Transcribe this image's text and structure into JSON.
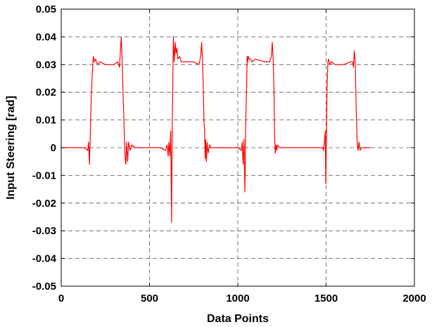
{
  "chart_data": {
    "type": "line",
    "title": "",
    "xlabel": "Data Points",
    "ylabel": "Input Steering [rad]",
    "xlim": [
      0,
      2000
    ],
    "ylim": [
      -0.05,
      0.05
    ],
    "x_ticks": [
      0,
      500,
      1000,
      1500,
      2000
    ],
    "x_tick_labels": [
      "0",
      "500",
      "1000",
      "1500",
      "2000"
    ],
    "y_ticks": [
      -0.05,
      -0.04,
      -0.03,
      -0.02,
      -0.01,
      0,
      0.01,
      0.02,
      0.03,
      0.04,
      0.05
    ],
    "y_tick_labels": [
      "-0.05",
      "-0.04",
      "-0.03",
      "-0.02",
      "-0.01",
      "0",
      "0.01",
      "0.02",
      "0.03",
      "0.04",
      "0.05"
    ],
    "grid": true,
    "grid_style": "dashed",
    "legend": "none",
    "series_color": "#ff0000",
    "series": [
      {
        "x": [
          0,
          130,
          150,
          155,
          160,
          165,
          170,
          175,
          182,
          188,
          195,
          205,
          220,
          250,
          300,
          320,
          330,
          335,
          340,
          345,
          350,
          355,
          358,
          362,
          366,
          370,
          376,
          382,
          390,
          400,
          420,
          500,
          560,
          590,
          600,
          605,
          610,
          615,
          620,
          625,
          628,
          632,
          635,
          640,
          645,
          650,
          655,
          660,
          670,
          680,
          700,
          750,
          780,
          790,
          795,
          800,
          805,
          808,
          812,
          815,
          818,
          822,
          826,
          832,
          840,
          850,
          870,
          900,
          1000,
          1020,
          1025,
          1030,
          1035,
          1040,
          1045,
          1050,
          1053,
          1056,
          1060,
          1065,
          1070,
          1080,
          1100,
          1150,
          1180,
          1190,
          1195,
          1200,
          1205,
          1208,
          1212,
          1216,
          1220,
          1225,
          1235,
          1260,
          1300,
          1460,
          1480,
          1485,
          1490,
          1495,
          1498,
          1502,
          1505,
          1510,
          1515,
          1520,
          1530,
          1550,
          1600,
          1640,
          1650,
          1655,
          1660,
          1665,
          1668,
          1672,
          1676,
          1680,
          1686,
          1692,
          1700,
          1720,
          1750
        ],
        "y": [
          0,
          0,
          -0.001,
          0.002,
          -0.006,
          0.005,
          0.018,
          0.026,
          0.033,
          0.031,
          0.032,
          0.03,
          0.031,
          0.03,
          0.03,
          0.031,
          0.029,
          0.035,
          0.04,
          0.032,
          0.02,
          0.01,
          0.003,
          -0.004,
          -0.006,
          0.002,
          -0.005,
          0.002,
          -0.001,
          0.001,
          0,
          0,
          0,
          -0.001,
          0.001,
          -0.003,
          0.002,
          -0.003,
          0.006,
          -0.027,
          0.004,
          0.024,
          0.04,
          0.031,
          0.038,
          0.034,
          0.036,
          0.032,
          0.033,
          0.031,
          0.031,
          0.031,
          0.03,
          0.033,
          0.038,
          0.032,
          0.02,
          0.01,
          0.006,
          -0.004,
          0.003,
          -0.005,
          0.002,
          -0.002,
          0.001,
          0,
          0,
          0,
          0,
          -0.001,
          0.002,
          -0.006,
          0.003,
          -0.016,
          0.01,
          0.022,
          0.033,
          0.031,
          0.033,
          0.032,
          0.032,
          0.031,
          0.032,
          0.031,
          0.031,
          0.033,
          0.038,
          0.032,
          0.02,
          0.005,
          -0.002,
          0.001,
          -0.001,
          0.001,
          0,
          0,
          0,
          0,
          0,
          -0.001,
          0.002,
          0.006,
          -0.013,
          0.004,
          0.02,
          0.031,
          0.032,
          0.03,
          0.031,
          0.03,
          0.03,
          0.031,
          0.031,
          0.029,
          0.035,
          0.031,
          0.02,
          0.01,
          0.002,
          -0.001,
          0.002,
          -0.001,
          0,
          0,
          0
        ]
      }
    ]
  }
}
